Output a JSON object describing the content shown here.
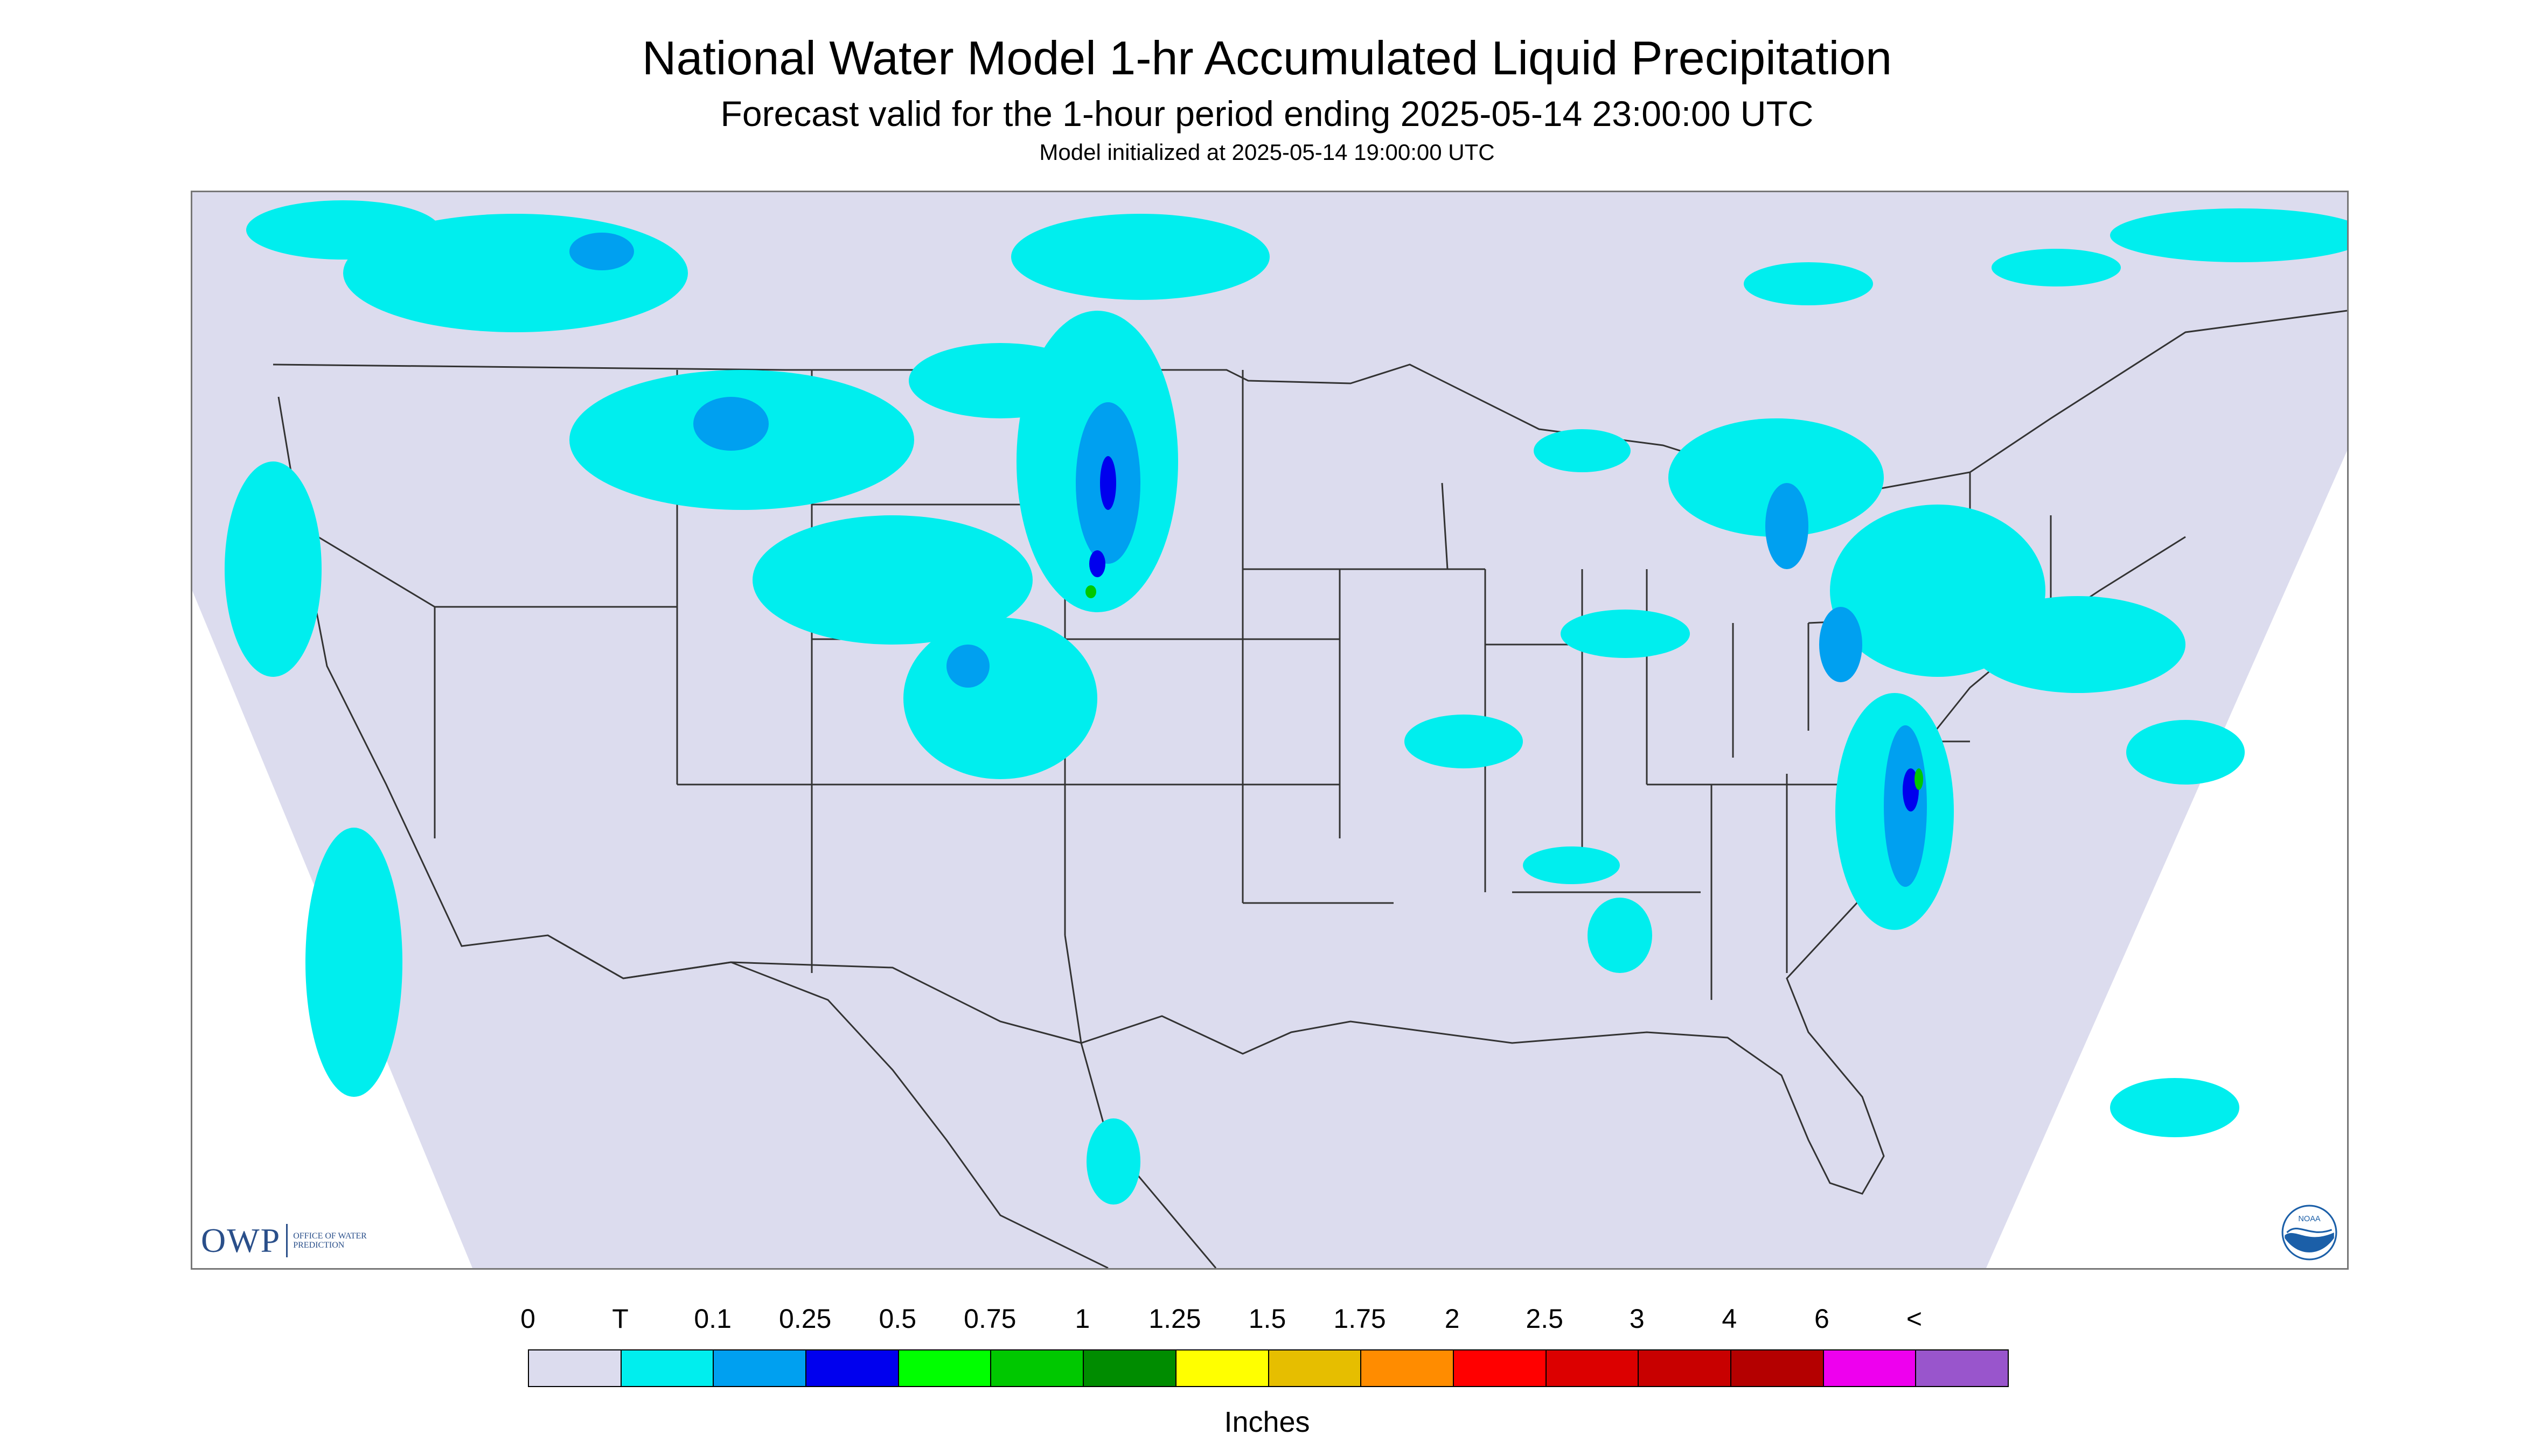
{
  "header": {
    "title": "National Water Model 1-hr Accumulated Liquid Precipitation",
    "subtitle": "Forecast valid for the 1-hour period ending 2025-05-14 23:00:00 UTC",
    "init": "Model initialized at 2025-05-14 19:00:00 UTC"
  },
  "logos": {
    "owp_text": "OWP",
    "owp_subtext": "OFFICE OF WATER PREDICTION",
    "noaa_text": "NOAA"
  },
  "legend": {
    "labels": [
      "0",
      "T",
      "0.1",
      "0.25",
      "0.5",
      "0.75",
      "1",
      "1.25",
      "1.5",
      "1.75",
      "2",
      "2.5",
      "3",
      "4",
      "6",
      "<"
    ],
    "colors": [
      "#dcdcee",
      "#00eeee",
      "#00a0f0",
      "#0000ee",
      "#00ff00",
      "#00c800",
      "#008c00",
      "#ffff00",
      "#e6be00",
      "#ff8c00",
      "#ff0000",
      "#dc0000",
      "#c80000",
      "#b40000",
      "#ee00ee",
      "#9955cc"
    ],
    "units": "Inches"
  },
  "colors": {
    "domain_fill": "#dcdcee",
    "outside_fill": "#ffffff",
    "boundary": "#333333",
    "trace": "#00eeee",
    "light": "#00a0f0",
    "medium": "#0000ee",
    "green": "#00c800",
    "noaa_blue": "#1b5fa8"
  }
}
